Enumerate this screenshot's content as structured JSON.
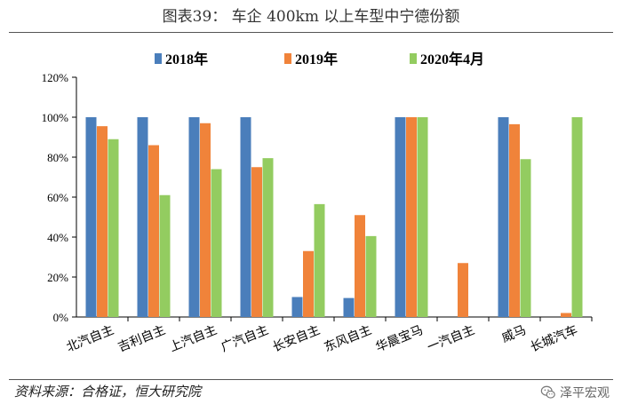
{
  "header": {
    "title": "图表39：   车企 400km 以上车型中宁德份额"
  },
  "footer": {
    "source": "资料来源：合格证，恒大研究院",
    "watermark": "泽平宏观"
  },
  "colors": {
    "s2018": "#4a7ebb",
    "s2019": "#f0833a",
    "s2020": "#93cc60"
  },
  "chart_data": {
    "type": "bar",
    "title": "车企 400km 以上车型中宁德份额",
    "xlabel": "",
    "ylabel": "",
    "ylim": [
      0,
      120
    ],
    "yticks": [
      "0%",
      "20%",
      "40%",
      "60%",
      "80%",
      "100%",
      "120%"
    ],
    "legend_position": "top",
    "categories": [
      "北汽自主",
      "吉利自主",
      "上汽自主",
      "广汽自主",
      "长安自主",
      "东风自主",
      "华晨宝马",
      "一汽自主",
      "威马",
      "长城汽车"
    ],
    "series": [
      {
        "name": "2018年",
        "values": [
          100,
          100,
          100,
          100,
          10,
          9.5,
          100,
          null,
          100,
          null
        ]
      },
      {
        "name": "2019年",
        "values": [
          95.5,
          86,
          97,
          75,
          33,
          51,
          100,
          27,
          96.5,
          2
        ]
      },
      {
        "name": "2020年4月",
        "values": [
          89,
          61,
          74,
          79.5,
          56.5,
          40.5,
          100,
          null,
          79,
          100
        ]
      }
    ]
  }
}
